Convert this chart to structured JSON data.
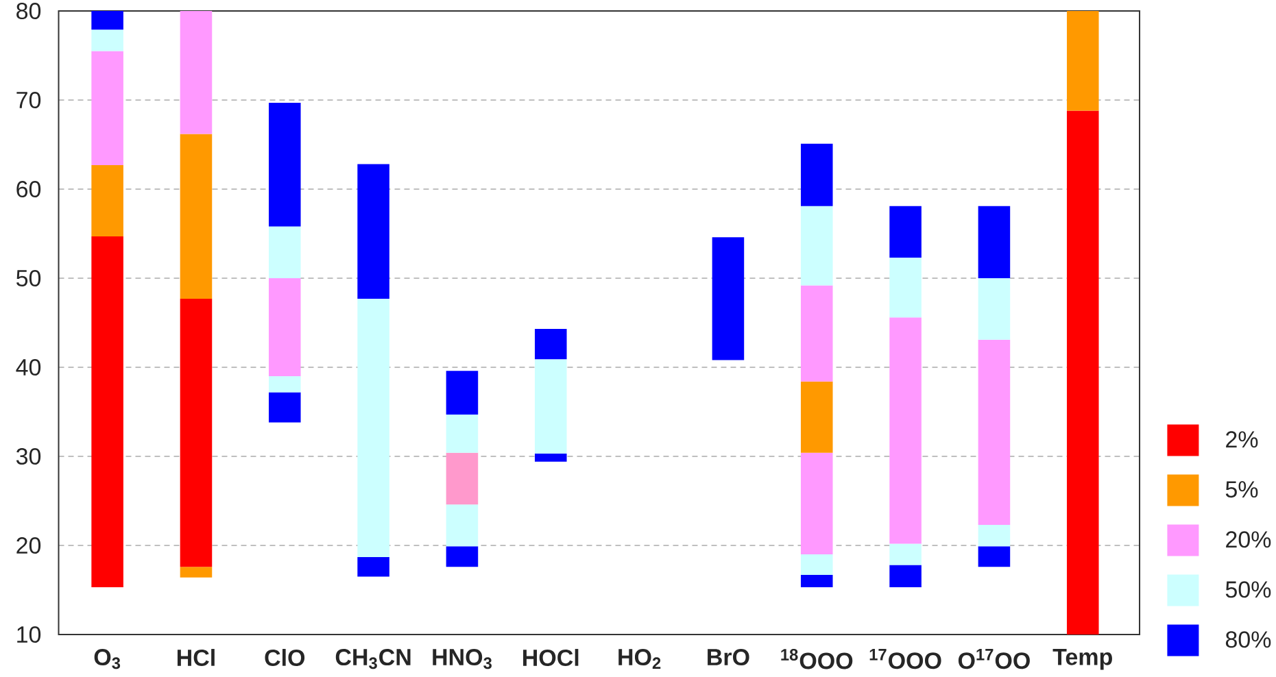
{
  "chart_data": {
    "type": "bar",
    "categories": [
      "O$_{3}$",
      "HCl",
      "ClO",
      "CH$_{3}$CN",
      "HNO$_{3}$",
      "HOCl",
      "HO$_{2}$",
      "BrO",
      "$^{18}$OOO",
      "$^{17}$OOO",
      "O$^{17}$OO",
      "Temp"
    ],
    "series": [
      {
        "color": "#0000ff",
        "base": [
          null,
          null,
          33.8,
          16.5,
          17.6,
          29.4,
          null,
          40.8,
          15.3,
          15.3,
          17.6,
          null
        ],
        "values": [
          null,
          null,
          3.4,
          2.2,
          2.3,
          0.9,
          null,
          13.8,
          1.4,
          2.5,
          2.3,
          null
        ]
      },
      {
        "color": "#ccffff",
        "base": [
          null,
          null,
          37.2,
          18.7,
          19.9,
          30.3,
          null,
          null,
          16.7,
          17.8,
          19.9,
          null
        ],
        "values": [
          null,
          null,
          1.8,
          29.0,
          4.7,
          10.6,
          null,
          null,
          2.3,
          2.4,
          2.4,
          null
        ]
      },
      {
        "colors": [
          "#ff99ff",
          "#ff99ff",
          "#ff99ff",
          "#ff99ff",
          "#ff99cc",
          "#ff99ff",
          "#ff99ff",
          "#ff99ff",
          "#ff99ff",
          "#ff99ff",
          "#ff99ff",
          "#ff99ff"
        ],
        "base": [
          null,
          null,
          39.0,
          null,
          24.6,
          null,
          null,
          null,
          19.0,
          20.2,
          22.3,
          null
        ],
        "values": [
          null,
          null,
          11.0,
          null,
          5.8,
          null,
          null,
          null,
          11.4,
          25.4,
          20.8,
          null
        ]
      },
      {
        "color": "#ff9900",
        "base": [
          null,
          16.4,
          null,
          null,
          null,
          null,
          null,
          null,
          30.4,
          null,
          null,
          null
        ],
        "values": [
          null,
          1.2,
          null,
          null,
          null,
          null,
          null,
          null,
          8.0,
          null,
          null,
          null
        ]
      },
      {
        "name": "2%",
        "color": "#ff0000",
        "base": [
          15.3,
          17.6,
          null,
          null,
          null,
          null,
          null,
          null,
          null,
          null,
          null,
          10
        ],
        "values": [
          39.4,
          30.1,
          null,
          null,
          null,
          null,
          null,
          null,
          null,
          null,
          null,
          58.8
        ]
      },
      {
        "name": "5%",
        "color": "#ff9900",
        "base": [
          54.7,
          47.7,
          null,
          null,
          null,
          null,
          null,
          null,
          null,
          null,
          null,
          68.8
        ],
        "values": [
          8.0,
          18.5,
          null,
          null,
          null,
          null,
          null,
          null,
          null,
          null,
          null,
          11.2
        ]
      },
      {
        "name": "20%",
        "color": "#ff99ff",
        "base": [
          62.7,
          66.2,
          null,
          null,
          null,
          null,
          null,
          null,
          38.4,
          null,
          null,
          null
        ],
        "values": [
          12.8,
          13.8,
          null,
          null,
          null,
          null,
          null,
          null,
          10.8,
          null,
          null,
          null
        ]
      },
      {
        "name": "50%",
        "color": "#ccffff",
        "base": [
          75.5,
          null,
          50.0,
          null,
          30.4,
          null,
          null,
          null,
          49.2,
          45.6,
          43.1,
          null
        ],
        "values": [
          2.4,
          null,
          5.8,
          null,
          4.3,
          null,
          null,
          null,
          8.9,
          6.7,
          6.9,
          null
        ]
      },
      {
        "name": "80%",
        "color": "#0000ff",
        "base": [
          77.9,
          null,
          55.8,
          47.7,
          34.7,
          40.9,
          null,
          null,
          58.1,
          52.3,
          50.0,
          null
        ],
        "values": [
          2.1,
          null,
          13.9,
          15.1,
          4.9,
          3.4,
          null,
          null,
          7.0,
          5.8,
          8.1,
          null
        ]
      }
    ],
    "ylim": [
      10,
      80
    ],
    "yticks": [
      10,
      20,
      30,
      40,
      50,
      60,
      70,
      80
    ],
    "grid": "y",
    "legend": "bottom right"
  }
}
